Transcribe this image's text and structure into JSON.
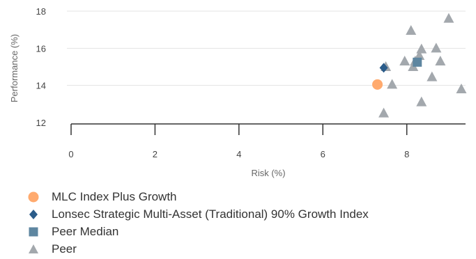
{
  "chart_data": {
    "type": "scatter",
    "xlabel": "Risk (%)",
    "ylabel": "Performance (%)",
    "xlim": [
      0,
      9.4
    ],
    "ylim": [
      11.7,
      18.3
    ],
    "xticks": [
      0,
      2,
      4,
      6,
      8
    ],
    "yticks": [
      12,
      14,
      16,
      18
    ],
    "x_tick_labels": [
      "0",
      "2",
      "4",
      "6",
      "8"
    ],
    "y_tick_labels": [
      "12",
      "14",
      "16",
      "18"
    ],
    "grid": "horizontal",
    "legend_position": "bottom",
    "series": [
      {
        "name": "Peer",
        "marker": "triangle",
        "color": "#a3a8ad",
        "points": [
          {
            "x": 7.45,
            "y": 12.5
          },
          {
            "x": 7.5,
            "y": 15.0
          },
          {
            "x": 7.65,
            "y": 14.05
          },
          {
            "x": 7.95,
            "y": 15.3
          },
          {
            "x": 8.1,
            "y": 16.95
          },
          {
            "x": 8.15,
            "y": 15.0
          },
          {
            "x": 8.2,
            "y": 15.3
          },
          {
            "x": 8.3,
            "y": 15.6
          },
          {
            "x": 8.35,
            "y": 15.95
          },
          {
            "x": 8.35,
            "y": 13.1
          },
          {
            "x": 8.6,
            "y": 14.45
          },
          {
            "x": 8.7,
            "y": 16.0
          },
          {
            "x": 8.8,
            "y": 15.3
          },
          {
            "x": 9.0,
            "y": 17.6
          },
          {
            "x": 9.3,
            "y": 13.8
          }
        ]
      },
      {
        "name": "Peer Median",
        "marker": "square",
        "color": "#5e86a0",
        "points": [
          {
            "x": 8.25,
            "y": 15.25
          }
        ]
      },
      {
        "name": "Lonsec Strategic Multi-Asset (Traditional) 90% Growth Index",
        "marker": "diamond",
        "color": "#2b5c8a",
        "points": [
          {
            "x": 7.45,
            "y": 14.95
          }
        ]
      },
      {
        "name": "MLC Index Plus Growth",
        "marker": "circle",
        "color": "#ffaa6e",
        "points": [
          {
            "x": 7.3,
            "y": 14.05
          }
        ]
      }
    ]
  },
  "legend": [
    {
      "label": "MLC Index Plus Growth",
      "marker": "circle",
      "color": "#ffaa6e"
    },
    {
      "label": "Lonsec Strategic Multi-Asset (Traditional) 90% Growth Index",
      "marker": "diamond",
      "color": "#2b5c8a"
    },
    {
      "label": "Peer Median",
      "marker": "square",
      "color": "#5e86a0"
    },
    {
      "label": "Peer",
      "marker": "triangle",
      "color": "#a3a8ad"
    }
  ]
}
